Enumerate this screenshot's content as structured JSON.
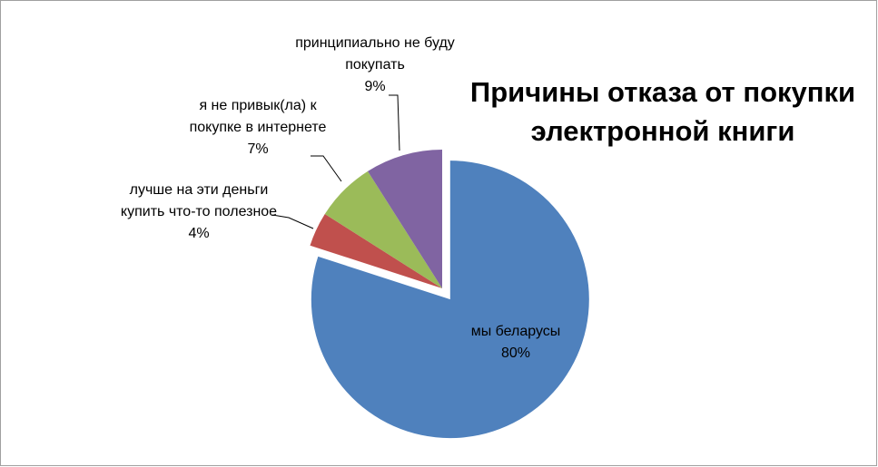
{
  "chart_data": {
    "type": "pie",
    "title": "Причины отказа от покупки электронной книги",
    "categories": [
      "мы беларусы",
      "лучше на эти деньги купить что-то полезное",
      "я не привык(ла) к покупке в интернете",
      "принципиально не буду покупать"
    ],
    "values": [
      80,
      4,
      7,
      9
    ],
    "value_labels": [
      "80%",
      "4%",
      "7%",
      "9%"
    ],
    "colors": [
      "#4f81bd",
      "#c0504d",
      "#9bbb59",
      "#8064a2"
    ],
    "exploded": [
      true,
      false,
      false,
      false
    ]
  }
}
